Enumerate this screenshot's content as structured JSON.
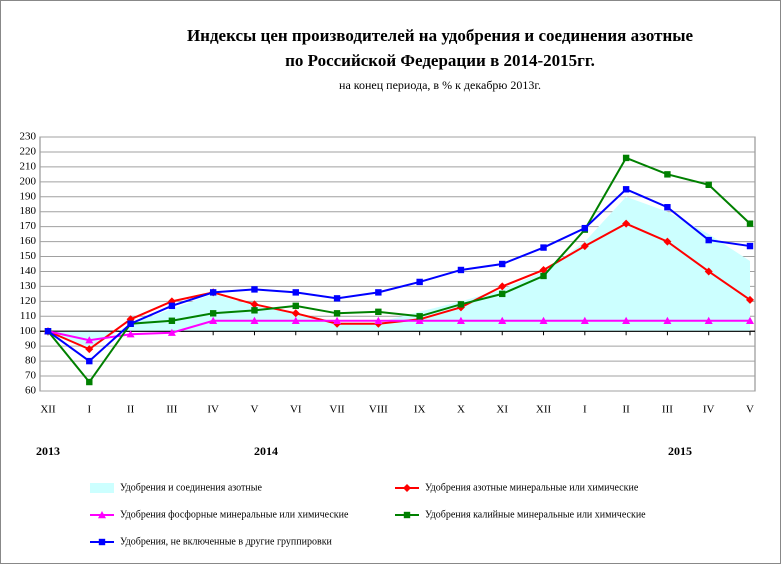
{
  "chart_data": {
    "type": "line",
    "title": [
      "Индексы цен производителей на удобрения и соединения азотные",
      "по Российской Федерации в 2014-2015гг."
    ],
    "subtitle": "на конец периода, в % к декабрю 2013г.",
    "categories": [
      "XII",
      "I",
      "II",
      "III",
      "IV",
      "V",
      "VI",
      "VII",
      "VIII",
      "IX",
      "X",
      "XI",
      "XII",
      "I",
      "II",
      "III",
      "IV",
      "V"
    ],
    "annotations": [
      "2013",
      "2014",
      "2015"
    ],
    "ylim": [
      60,
      230
    ],
    "yticks": [
      60,
      70,
      80,
      90,
      100,
      110,
      120,
      130,
      140,
      150,
      160,
      170,
      180,
      190,
      200,
      210,
      220,
      230
    ],
    "x_axis_crossing": 100,
    "grid": true,
    "legend": "bottom",
    "series": [
      {
        "name": "Удобрения и соединения азотные",
        "kind": "area",
        "color": "#ccffff",
        "values": [
          100,
          88,
          105,
          115,
          125,
          117,
          112,
          106,
          106,
          113,
          120,
          128,
          140,
          160,
          190,
          180,
          165,
          147
        ]
      },
      {
        "name": "Удобрения азотные минеральные или химические",
        "kind": "line",
        "marker": "diamond",
        "color": "#ff0000",
        "values": [
          100,
          88,
          108,
          120,
          126,
          118,
          112,
          105,
          105,
          108,
          116,
          130,
          141,
          157,
          172,
          160,
          140,
          121
        ]
      },
      {
        "name": "Удобрения фосфорные минеральные или химические",
        "kind": "line",
        "marker": "triangle",
        "color": "#ff00ff",
        "values": [
          100,
          94,
          98,
          99,
          107,
          107,
          107,
          107,
          107,
          107,
          107,
          107,
          107,
          107,
          107,
          107,
          107,
          107
        ]
      },
      {
        "name": "Удобрения калийные  минеральные или химические",
        "kind": "line",
        "marker": "square",
        "color": "#008000",
        "values": [
          100,
          66,
          105,
          107,
          112,
          114,
          117,
          112,
          113,
          110,
          118,
          125,
          137,
          168,
          216,
          205,
          198,
          172
        ]
      },
      {
        "name": "Удобрения, не включенные в другие группировки",
        "kind": "line",
        "marker": "square",
        "color": "#0000ff",
        "values": [
          100,
          80,
          105,
          117,
          126,
          128,
          126,
          122,
          126,
          133,
          141,
          145,
          156,
          169,
          195,
          183,
          161,
          157
        ]
      }
    ]
  }
}
